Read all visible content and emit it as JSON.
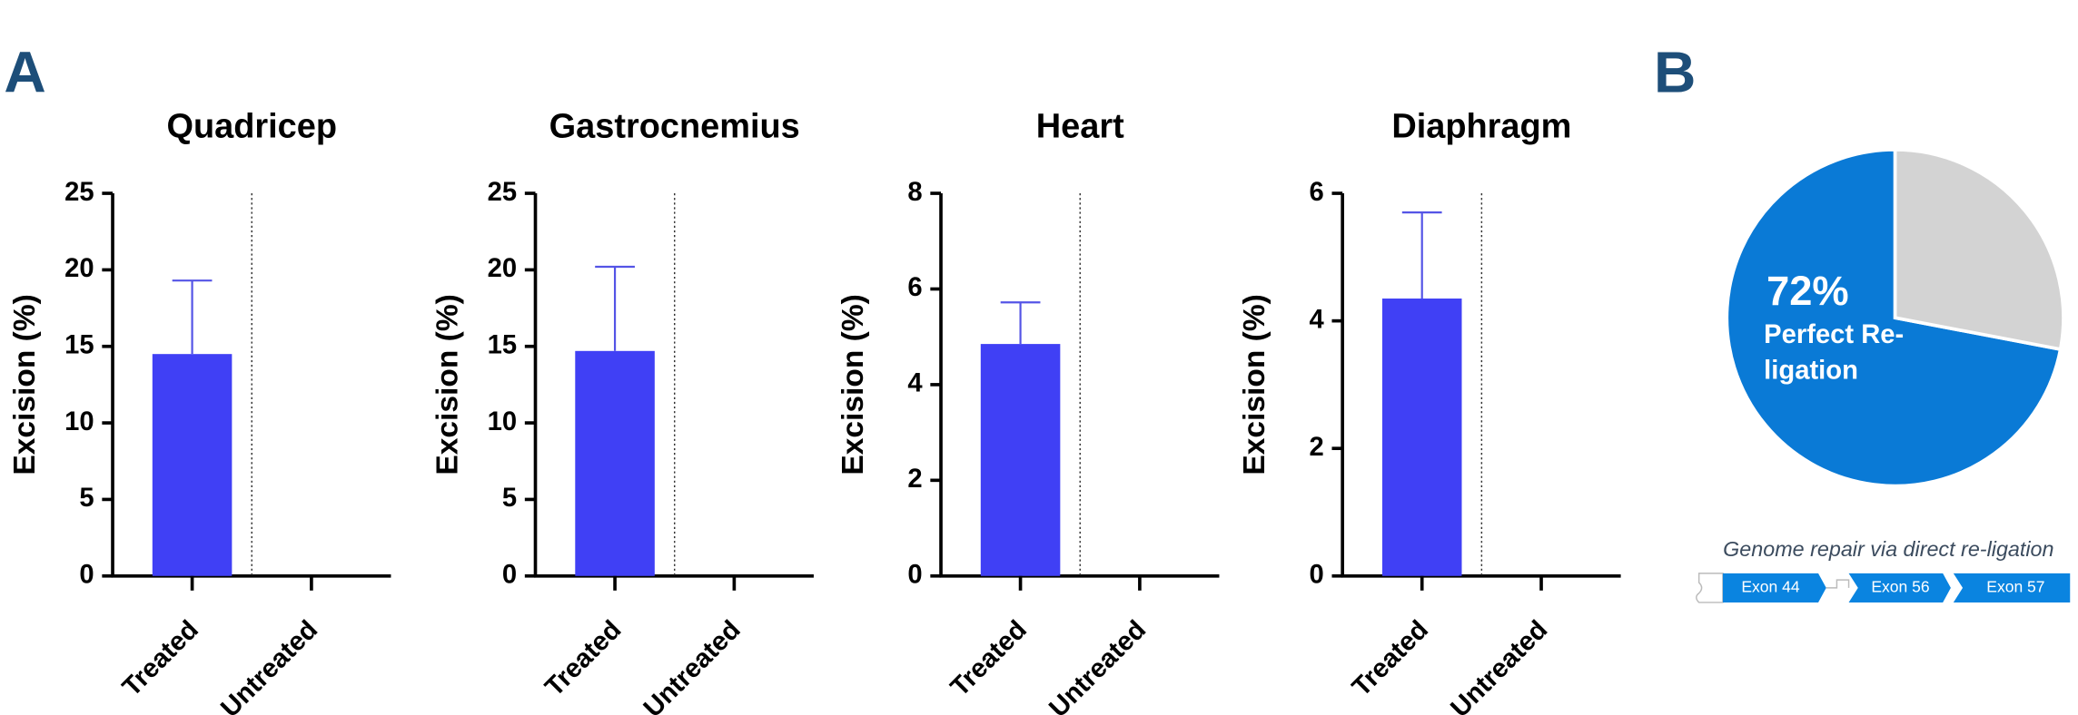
{
  "panels": [
    "A",
    "B"
  ],
  "chart_data": [
    {
      "type": "bar",
      "title": "Quadricep",
      "y_label": "Excision (%)",
      "categories": [
        "Treated",
        "Untreated"
      ],
      "values": [
        14.5,
        0
      ],
      "errors": [
        4.8,
        null
      ],
      "color": "#4040f5",
      "error_color": "#5454e6",
      "ylim": [
        0,
        25
      ],
      "yticks": [
        0,
        5,
        10,
        15,
        20,
        25
      ]
    },
    {
      "type": "bar",
      "title": "Gastrocnemius",
      "y_label": "Excision (%)",
      "categories": [
        "Treated",
        "Untreated"
      ],
      "values": [
        14.7,
        0
      ],
      "errors": [
        5.5,
        null
      ],
      "color": "#4040f5",
      "error_color": "#5454e6",
      "ylim": [
        0,
        25
      ],
      "yticks": [
        0,
        5,
        10,
        15,
        20,
        25
      ]
    },
    {
      "type": "bar",
      "title": "Heart",
      "y_label": "Excision (%)",
      "categories": [
        "Treated",
        "Untreated"
      ],
      "values": [
        4.85,
        0
      ],
      "errors": [
        0.87,
        null
      ],
      "color": "#4040f5",
      "error_color": "#5454e6",
      "ylim": [
        0,
        8
      ],
      "yticks": [
        0,
        2,
        4,
        6,
        8
      ]
    },
    {
      "type": "bar",
      "title": "Diaphragm",
      "y_label": "Excision (%)",
      "categories": [
        "Treated",
        "Untreated"
      ],
      "values": [
        4.35,
        0
      ],
      "errors": [
        1.35,
        null
      ],
      "color": "#4040f5",
      "error_color": "#5454e6",
      "ylim": [
        0,
        6
      ],
      "yticks": [
        0,
        2,
        4,
        6
      ]
    },
    {
      "type": "pie",
      "categories": [
        "Perfect Re-ligation",
        null
      ],
      "values": [
        72,
        28
      ],
      "value_labels": [
        "72%",
        null
      ],
      "colors": [
        "#0a7ad6",
        "#d3d3d3"
      ]
    }
  ],
  "diagram": {
    "caption": "Genome repair via direct re-ligation",
    "exons": [
      "Exon 44",
      "Exon 56",
      "Exon 57"
    ]
  }
}
